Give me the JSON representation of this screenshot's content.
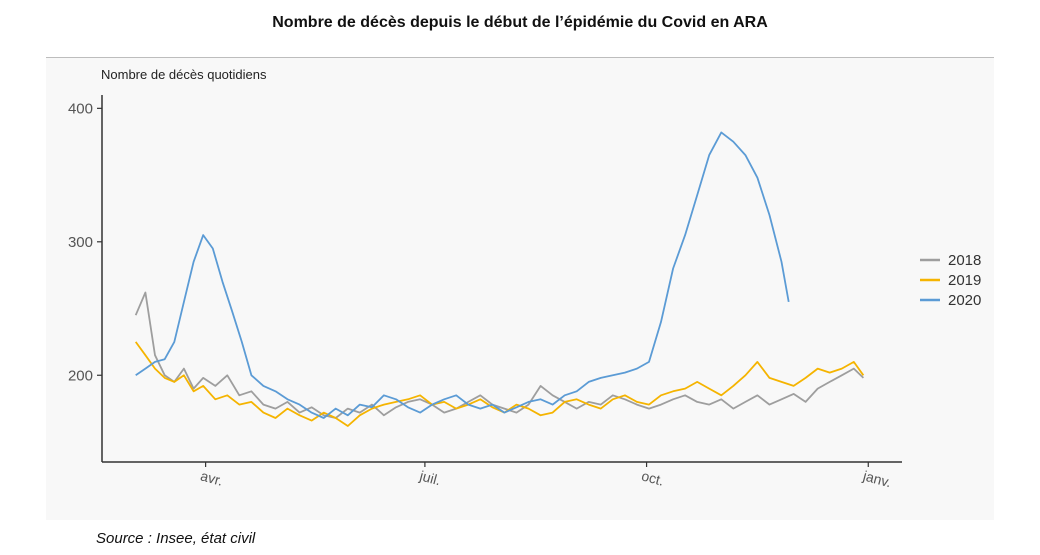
{
  "title": "Nombre de décès depuis le début de l’épidémie du Covid en ARA",
  "source": "Source : Insee, état civil",
  "chart_data": {
    "type": "line",
    "ylabel": "Nombre de décès quotidiens",
    "xlabel": "",
    "ylim": [
      135,
      410
    ],
    "yticks": [
      200,
      300,
      400
    ],
    "xticks": [
      {
        "label": "avr.",
        "day": 91
      },
      {
        "label": "juil.",
        "day": 182
      },
      {
        "label": "oct.",
        "day": 274
      },
      {
        "label": "janv.",
        "day": 366
      }
    ],
    "xlim": [
      48,
      380
    ],
    "grid": false,
    "legend_position": "right",
    "series": [
      {
        "name": "2018",
        "color": "#9e9e9e",
        "x": [
          62,
          66,
          70,
          74,
          78,
          82,
          86,
          90,
          95,
          100,
          105,
          110,
          115,
          120,
          125,
          130,
          135,
          140,
          145,
          150,
          155,
          160,
          165,
          170,
          175,
          180,
          185,
          190,
          195,
          200,
          205,
          210,
          215,
          220,
          225,
          230,
          235,
          240,
          245,
          250,
          255,
          260,
          265,
          270,
          275,
          280,
          285,
          290,
          295,
          300,
          305,
          310,
          315,
          320,
          325,
          330,
          335,
          340,
          345,
          350,
          355,
          360,
          364
        ],
        "values": [
          245,
          262,
          215,
          200,
          195,
          205,
          190,
          198,
          192,
          200,
          185,
          188,
          178,
          175,
          180,
          172,
          176,
          170,
          168,
          175,
          172,
          178,
          170,
          176,
          180,
          182,
          178,
          172,
          175,
          180,
          185,
          178,
          175,
          172,
          178,
          192,
          185,
          180,
          175,
          180,
          178,
          185,
          182,
          178,
          175,
          178,
          182,
          185,
          180,
          178,
          182,
          175,
          180,
          185,
          178,
          182,
          186,
          180,
          190,
          195,
          200,
          205,
          198
        ]
      },
      {
        "name": "2019",
        "color": "#f5b400",
        "x": [
          62,
          66,
          70,
          74,
          78,
          82,
          86,
          90,
          95,
          100,
          105,
          110,
          115,
          120,
          125,
          130,
          135,
          140,
          145,
          150,
          155,
          160,
          165,
          170,
          175,
          180,
          185,
          190,
          195,
          200,
          205,
          210,
          215,
          220,
          225,
          230,
          235,
          240,
          245,
          250,
          255,
          260,
          265,
          270,
          275,
          280,
          285,
          290,
          295,
          300,
          305,
          310,
          315,
          320,
          325,
          330,
          335,
          340,
          345,
          350,
          355,
          360,
          364
        ],
        "values": [
          225,
          215,
          205,
          198,
          195,
          200,
          188,
          192,
          182,
          185,
          178,
          180,
          172,
          168,
          175,
          170,
          166,
          172,
          168,
          162,
          170,
          175,
          178,
          180,
          182,
          185,
          178,
          180,
          175,
          178,
          182,
          176,
          172,
          178,
          175,
          170,
          172,
          180,
          182,
          178,
          175,
          182,
          185,
          180,
          178,
          185,
          188,
          190,
          195,
          190,
          185,
          192,
          200,
          210,
          198,
          195,
          192,
          198,
          205,
          202,
          205,
          210,
          200
        ]
      },
      {
        "name": "2020",
        "color": "#5b9bd5",
        "x": [
          62,
          66,
          70,
          74,
          78,
          82,
          86,
          90,
          94,
          98,
          102,
          106,
          110,
          115,
          120,
          125,
          130,
          135,
          140,
          145,
          150,
          155,
          160,
          165,
          170,
          175,
          180,
          185,
          190,
          195,
          200,
          205,
          210,
          215,
          220,
          225,
          230,
          235,
          240,
          245,
          250,
          255,
          260,
          265,
          270,
          275,
          280,
          285,
          290,
          295,
          300,
          305,
          310,
          315,
          320,
          325,
          330,
          333
        ],
        "values": [
          200,
          205,
          210,
          212,
          225,
          255,
          285,
          305,
          295,
          270,
          248,
          225,
          200,
          192,
          188,
          182,
          178,
          172,
          168,
          175,
          170,
          178,
          176,
          185,
          182,
          176,
          172,
          178,
          182,
          185,
          178,
          175,
          178,
          172,
          176,
          180,
          182,
          178,
          185,
          188,
          195,
          198,
          200,
          202,
          205,
          210,
          240,
          280,
          305,
          335,
          365,
          382,
          375,
          365,
          348,
          320,
          285,
          255
        ]
      }
    ]
  }
}
